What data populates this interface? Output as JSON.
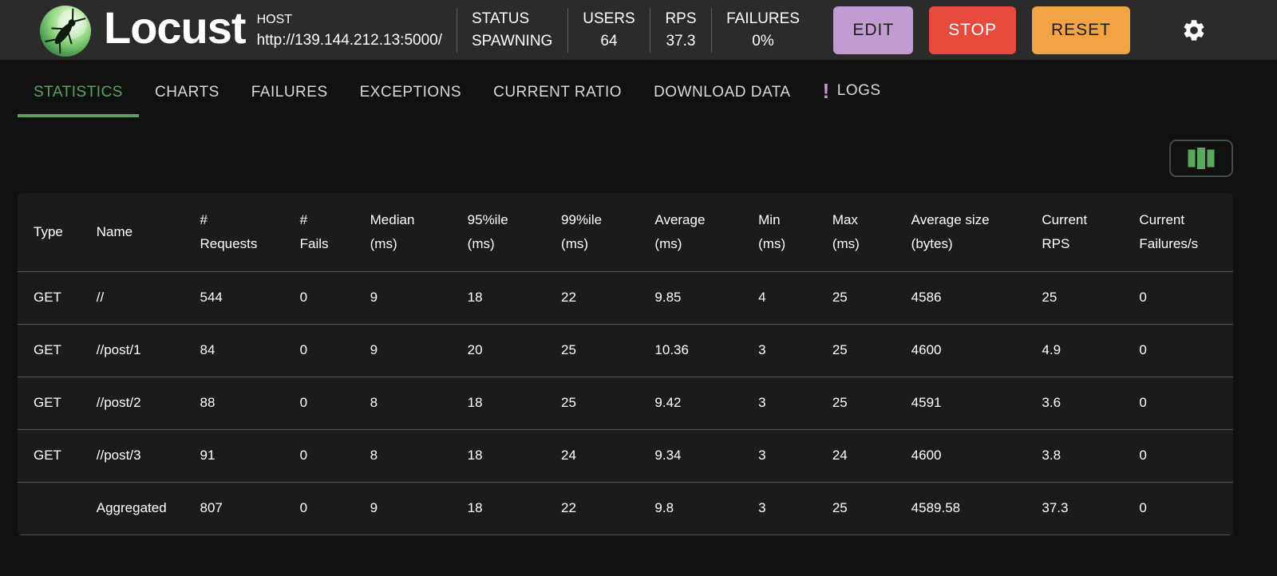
{
  "header": {
    "title": "Locust",
    "host": {
      "label": "HOST",
      "value": "http://139.144.212.13:5000/"
    },
    "stats": [
      {
        "label": "STATUS",
        "value": "SPAWNING"
      },
      {
        "label": "USERS",
        "value": "64"
      },
      {
        "label": "RPS",
        "value": "37.3"
      },
      {
        "label": "FAILURES",
        "value": "0%"
      }
    ],
    "buttons": {
      "edit": "EDIT",
      "stop": "STOP",
      "reset": "RESET"
    },
    "icons": {
      "settings": "gear-icon",
      "logo": "locust-logo"
    }
  },
  "colors": {
    "edit_button": "#c39bd3",
    "stop_button": "#e64a3c",
    "reset_button": "#f2a444",
    "active_tab_green": "#5f9f63",
    "logs_alert_purple": "#ce93d8",
    "columns_icon_green": "#5aa85e"
  },
  "tabs": [
    {
      "label": "STATISTICS",
      "active": true
    },
    {
      "label": "CHARTS",
      "active": false
    },
    {
      "label": "FAILURES",
      "active": false
    },
    {
      "label": "EXCEPTIONS",
      "active": false
    },
    {
      "label": "CURRENT RATIO",
      "active": false
    },
    {
      "label": "DOWNLOAD DATA",
      "active": false
    },
    {
      "label": "LOGS",
      "active": false,
      "alert_icon": "!"
    }
  ],
  "table": {
    "columns": [
      "Type",
      "Name",
      "#\nRequests",
      "#\nFails",
      "Median\n(ms)",
      "95%ile\n(ms)",
      "99%ile\n(ms)",
      "Average\n(ms)",
      "Min\n(ms)",
      "Max\n(ms)",
      "Average size\n(bytes)",
      "Current\nRPS",
      "Current\nFailures/s"
    ],
    "rows": [
      [
        "GET",
        "//",
        "544",
        "0",
        "9",
        "18",
        "22",
        "9.85",
        "4",
        "25",
        "4586",
        "25",
        "0"
      ],
      [
        "GET",
        "//post/1",
        "84",
        "0",
        "9",
        "20",
        "25",
        "10.36",
        "3",
        "25",
        "4600",
        "4.9",
        "0"
      ],
      [
        "GET",
        "//post/2",
        "88",
        "0",
        "8",
        "18",
        "25",
        "9.42",
        "3",
        "25",
        "4591",
        "3.6",
        "0"
      ],
      [
        "GET",
        "//post/3",
        "91",
        "0",
        "8",
        "18",
        "24",
        "9.34",
        "3",
        "24",
        "4600",
        "3.8",
        "0"
      ],
      [
        "",
        "Aggregated",
        "807",
        "0",
        "9",
        "18",
        "22",
        "9.8",
        "3",
        "25",
        "4589.58",
        "37.3",
        "0"
      ]
    ]
  }
}
